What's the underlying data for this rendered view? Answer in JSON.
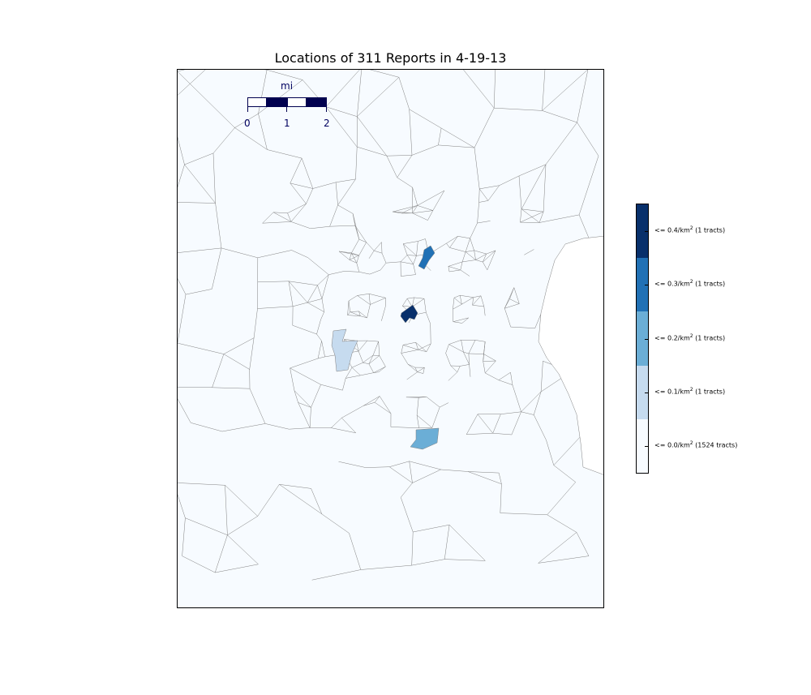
{
  "title": "Locations of 311 Reports in 4-19-13",
  "scale": {
    "unit": "mi",
    "ticks": [
      "0",
      "1",
      "2"
    ],
    "fill_color": "#00004f"
  },
  "legend": {
    "items": [
      {
        "label_prefix": "<= 0.4/km",
        "label_suffix": " (1 tracts)",
        "color": "#08306b"
      },
      {
        "label_prefix": "<= 0.3/km",
        "label_suffix": " (1 tracts)",
        "color": "#2171b5"
      },
      {
        "label_prefix": "<= 0.2/km",
        "label_suffix": " (1 tracts)",
        "color": "#6baed6"
      },
      {
        "label_prefix": "<= 0.1/km",
        "label_suffix": " (1 tracts)",
        "color": "#c6dbef"
      },
      {
        "label_prefix": "<= 0.0/km",
        "label_suffix": " (1524 tracts)",
        "color": "#f7fbff"
      }
    ],
    "superscript": "2"
  },
  "colors": {
    "tract_base": "#f7fbff",
    "tract_border": "#808080"
  }
}
